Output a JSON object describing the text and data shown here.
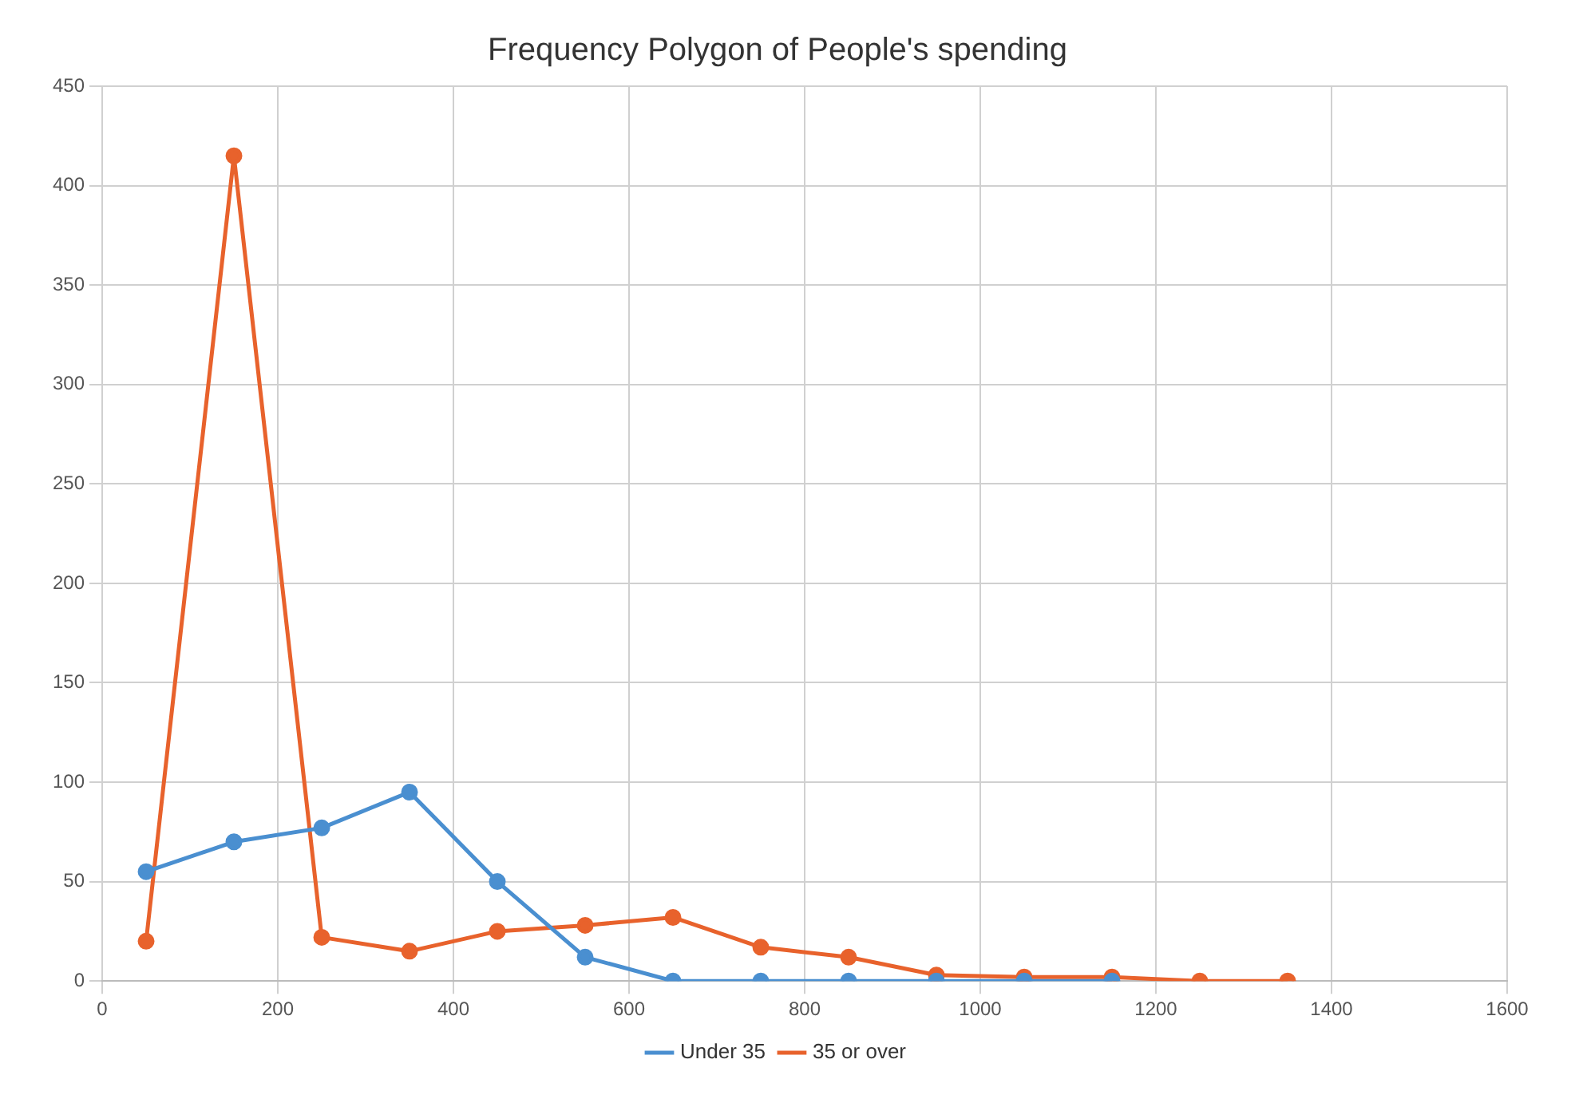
{
  "chart_data": {
    "type": "line",
    "title": "Frequency Polygon of People's spending",
    "series": [
      {
        "name": "Under 35",
        "color": "#4a8fd0",
        "x": [
          50,
          150,
          250,
          350,
          450,
          550,
          650,
          750,
          850,
          950,
          1050,
          1150
        ],
        "values": [
          55,
          70,
          77,
          95,
          50,
          12,
          0,
          0,
          0,
          0,
          0,
          0
        ]
      },
      {
        "name": "35 or over",
        "color": "#e8622c",
        "x": [
          50,
          150,
          250,
          350,
          450,
          550,
          650,
          750,
          850,
          950,
          1050,
          1150,
          1250,
          1350
        ],
        "values": [
          20,
          415,
          22,
          15,
          25,
          28,
          32,
          17,
          12,
          3,
          2,
          2,
          0,
          0
        ]
      }
    ],
    "xlim": [
      0,
      1600
    ],
    "xticks": [
      0,
      200,
      400,
      600,
      800,
      1000,
      1200,
      1400,
      1600
    ],
    "ylim": [
      0,
      450
    ],
    "yticks": [
      0,
      50,
      100,
      150,
      200,
      250,
      300,
      350,
      400,
      450
    ],
    "grid": true,
    "legend": "bottom",
    "marker": "circle",
    "line_style": "solid"
  }
}
